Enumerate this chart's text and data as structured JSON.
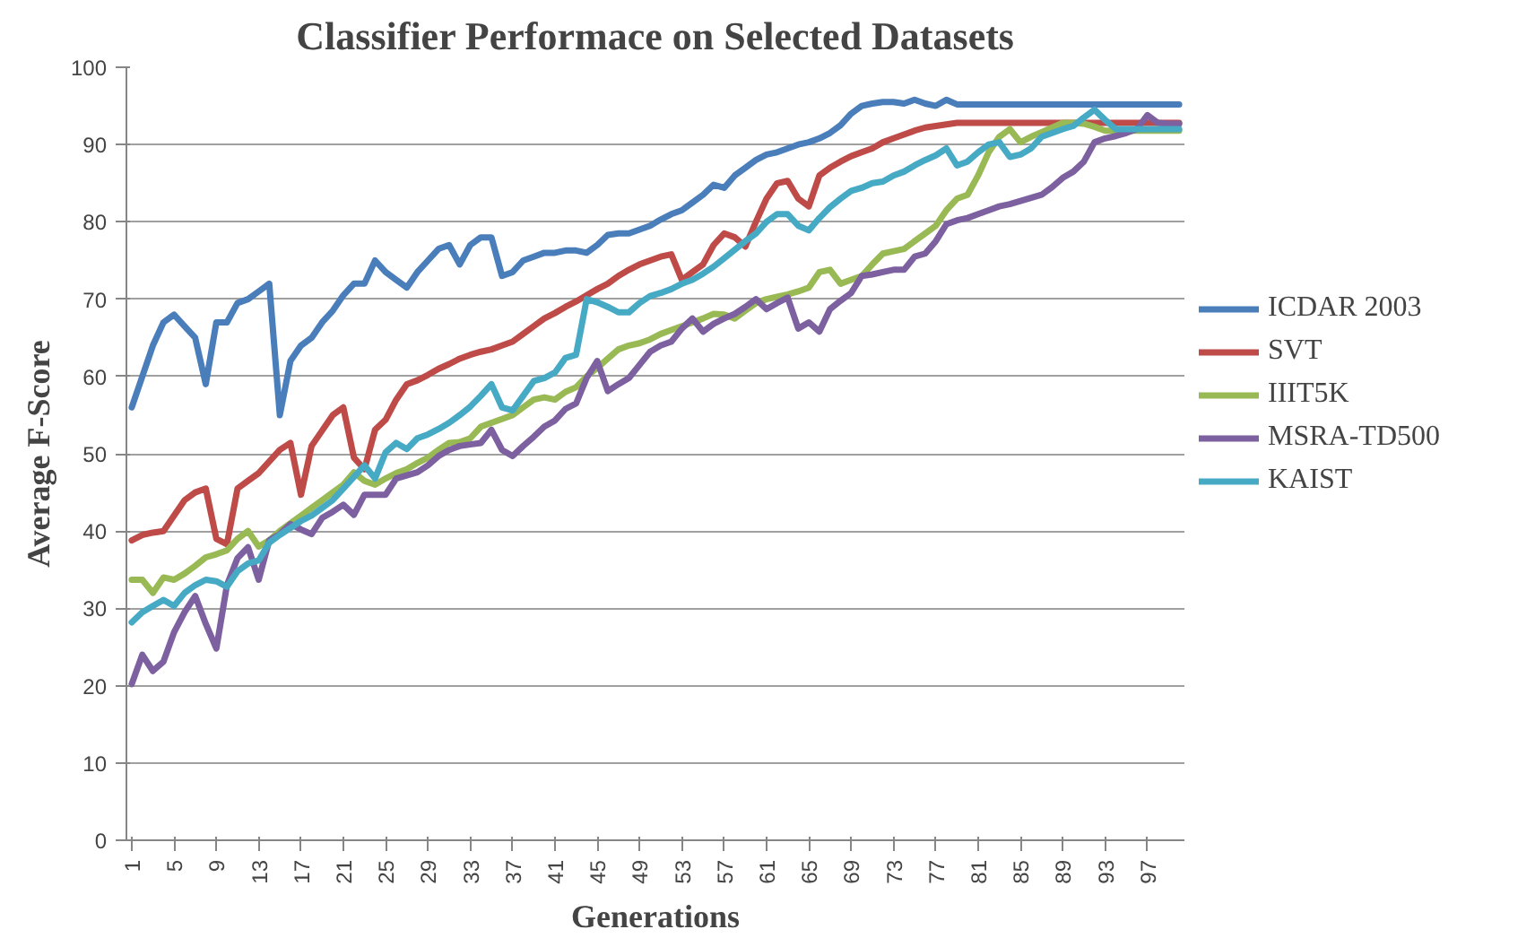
{
  "chart_data": {
    "type": "line",
    "title": "Classifier Performace on Selected Datasets",
    "xlabel": "Generations",
    "ylabel": "Average F-Score",
    "categories": [
      "1",
      null,
      null,
      null,
      "5",
      null,
      null,
      null,
      "9",
      null,
      null,
      null,
      "13",
      null,
      null,
      null,
      "17",
      null,
      null,
      null,
      "21",
      null,
      null,
      null,
      "25",
      null,
      null,
      null,
      "29",
      null,
      null,
      null,
      "33",
      null,
      null,
      null,
      "37",
      null,
      null,
      null,
      "41",
      null,
      null,
      null,
      "45",
      null,
      null,
      null,
      "49",
      null,
      null,
      null,
      "53",
      null,
      null,
      null,
      "57",
      null,
      null,
      null,
      "61",
      null,
      null,
      null,
      "65",
      null,
      null,
      null,
      "69",
      null,
      null,
      null,
      "73",
      null,
      null,
      null,
      "77",
      null,
      null,
      null,
      "81",
      null,
      null,
      null,
      "85",
      null,
      null,
      null,
      "89",
      null,
      null,
      null,
      "93",
      null,
      null,
      null,
      "97",
      null,
      null,
      null
    ],
    "ylim": [
      0,
      100
    ],
    "yticks": [
      0,
      10,
      20,
      30,
      40,
      50,
      60,
      70,
      80,
      90,
      100
    ],
    "grid": "y",
    "legend": "right",
    "series": [
      {
        "name": "ICDAR 2003",
        "color": "#4a7ebb",
        "values": [
          56,
          60,
          64,
          67,
          68,
          66.5,
          65,
          59,
          67,
          67,
          69.5,
          70,
          71,
          72,
          55,
          62,
          64,
          65,
          67,
          68.5,
          70.5,
          72,
          72,
          75,
          73.5,
          72.5,
          71.5,
          73.5,
          75,
          76.5,
          77,
          74.5,
          77,
          78,
          78,
          73,
          73.5,
          75,
          75.5,
          76,
          76,
          76.3,
          76.3,
          76,
          77,
          78.3,
          78.5,
          78.5,
          79,
          79.5,
          80.3,
          81,
          81.5,
          82.5,
          83.5,
          84.8,
          84.4,
          86,
          87,
          88,
          88.7,
          89,
          89.5,
          90,
          90.3,
          90.8,
          91.5,
          92.5,
          94,
          95,
          95.3,
          95.5,
          95.5,
          95.3,
          95.8,
          95.3,
          95,
          95.8,
          95.2,
          95.2,
          95.2,
          95.2,
          95.2,
          95.2,
          95.2,
          95.2,
          95.2,
          95.2,
          95.2,
          95.2,
          95.2,
          95.2,
          95.2,
          95.2,
          95.2,
          95.2,
          95.2,
          95.2,
          95.2,
          95.2
        ]
      },
      {
        "name": "SVT",
        "color": "#be4b48",
        "values": [
          38.8,
          39.5,
          39.8,
          40,
          42,
          44,
          45,
          45.5,
          39,
          38.3,
          45.5,
          46.5,
          47.5,
          49,
          50.5,
          51.4,
          44.7,
          51,
          53,
          55,
          56,
          49.5,
          48,
          53.1,
          54.4,
          57,
          59,
          59.5,
          60.2,
          61,
          61.6,
          62.3,
          62.8,
          63.2,
          63.5,
          64,
          64.5,
          65.5,
          66.5,
          67.5,
          68.2,
          69,
          69.7,
          70.5,
          71.3,
          72,
          73,
          73.8,
          74.5,
          75,
          75.5,
          75.8,
          72.5,
          73.5,
          74.5,
          77,
          78.5,
          78,
          76.8,
          80,
          83,
          85,
          85.3,
          83,
          82,
          86,
          87,
          87.8,
          88.5,
          89,
          89.5,
          90.3,
          90.8,
          91.3,
          91.8,
          92.2,
          92.4,
          92.6,
          92.8,
          92.8,
          92.8,
          92.8,
          92.8,
          92.8,
          92.8,
          92.8,
          92.8,
          92.8,
          92.8,
          92.8,
          92.8,
          92.8,
          92.8,
          92.8,
          92.8,
          92.8,
          92.8,
          92.8,
          92.8,
          92.8
        ]
      },
      {
        "name": "IIIT5K",
        "color": "#98b954",
        "values": [
          33.7,
          33.7,
          32,
          34,
          33.7,
          34.5,
          35.5,
          36.6,
          37,
          37.5,
          39,
          40,
          38,
          38.8,
          40,
          41,
          42,
          43,
          44,
          45,
          46,
          47.6,
          46.5,
          46,
          46.8,
          47.5,
          48,
          48.8,
          49.5,
          50.5,
          51.4,
          51.5,
          52,
          53.5,
          54,
          54.5,
          55,
          56,
          57,
          57.3,
          57,
          58,
          58.6,
          60,
          61.1,
          62.3,
          63.5,
          64,
          64.3,
          64.8,
          65.5,
          66,
          66.5,
          67,
          67.5,
          68.1,
          68,
          67.5,
          68.5,
          69.5,
          70,
          70.3,
          70.6,
          71,
          71.5,
          73.5,
          73.8,
          72,
          72.5,
          73,
          74.5,
          75.9,
          76.2,
          76.5,
          77.5,
          78.5,
          79.5,
          81.5,
          83,
          83.5,
          86,
          89,
          91,
          92,
          90.3,
          91,
          91.6,
          92.2,
          92.8,
          92.8,
          92.7,
          92.3,
          91.8,
          91.8,
          91.8,
          91.8,
          91.8,
          91.8,
          91.8,
          91.8
        ]
      },
      {
        "name": "MSRA-TD500",
        "color": "#7d60a0",
        "values": [
          20.2,
          24,
          21.9,
          23.1,
          26.9,
          29.5,
          31.6,
          28,
          24.8,
          33,
          36.5,
          37.9,
          33.7,
          38.8,
          39.6,
          40.9,
          40.2,
          39.6,
          41.7,
          42.5,
          43.4,
          42.1,
          44.7,
          44.7,
          44.7,
          46.8,
          47.2,
          47.6,
          48.5,
          49.7,
          50.5,
          51,
          51.2,
          51.4,
          53.1,
          50.5,
          49.7,
          51,
          52.2,
          53.5,
          54.3,
          55.8,
          56.5,
          59.8,
          62,
          58.1,
          59,
          59.8,
          61.5,
          63.2,
          64,
          64.5,
          66.2,
          67.5,
          65.8,
          66.8,
          67.5,
          68.1,
          69,
          70,
          68.7,
          69.5,
          70.2,
          66.2,
          67,
          65.8,
          68.7,
          69.8,
          70.8,
          73,
          73.2,
          73.5,
          73.8,
          73.8,
          75.5,
          75.9,
          77.5,
          79.7,
          80.2,
          80.5,
          81,
          81.5,
          82,
          82.3,
          82.7,
          83.1,
          83.5,
          84.5,
          85.7,
          86.5,
          87.8,
          90.3,
          90.8,
          91.1,
          91.5,
          92,
          93.8,
          92.8,
          92.7,
          92.7
        ]
      },
      {
        "name": "KAIST",
        "color": "#46aac5",
        "values": [
          28.2,
          29.5,
          30.3,
          31.1,
          30.3,
          32,
          33,
          33.7,
          33.5,
          32.8,
          34.8,
          35.8,
          36.2,
          38.5,
          39.5,
          40.4,
          41.3,
          42,
          43,
          44,
          45.5,
          47,
          48.5,
          46.8,
          50.2,
          51.4,
          50.6,
          52,
          52.5,
          53.2,
          54,
          55,
          56.1,
          57.5,
          59,
          56,
          55.6,
          57.5,
          59.4,
          59.8,
          60.5,
          62.4,
          62.8,
          70,
          69.6,
          69,
          68.3,
          68.3,
          69.5,
          70.4,
          70.8,
          71.3,
          72,
          72.5,
          73.3,
          74.2,
          75.3,
          76.4,
          77.5,
          78.5,
          80,
          81,
          81,
          79.5,
          78.9,
          80.5,
          81.9,
          83,
          84,
          84.4,
          85,
          85.2,
          86,
          86.5,
          87.3,
          88,
          88.6,
          89.5,
          87.3,
          87.8,
          89,
          90,
          90.3,
          88.4,
          88.7,
          89.5,
          91,
          91.5,
          92,
          92.4,
          93.5,
          94.5,
          93.2,
          92,
          92,
          92,
          92,
          92,
          92,
          92
        ]
      }
    ]
  }
}
